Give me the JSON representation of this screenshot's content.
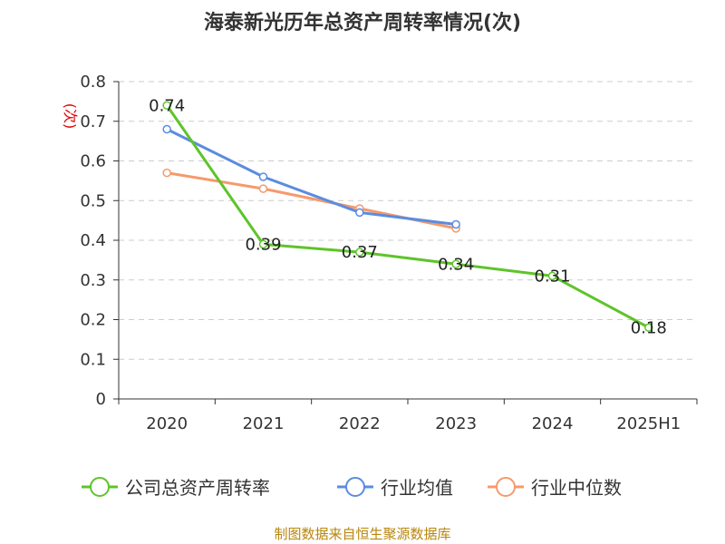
{
  "chart_data": {
    "type": "line",
    "title": "海泰新光历年总资产周转率情况(次)",
    "ylabel": "(次)",
    "xlabel": "",
    "categories": [
      "2020",
      "2021",
      "2022",
      "2023",
      "2024",
      "2025H1"
    ],
    "ylim": [
      0,
      0.8
    ],
    "yticks": [
      0,
      0.1,
      0.2,
      0.3,
      0.4,
      0.5,
      0.6,
      0.7,
      0.8
    ],
    "grid": true,
    "legend_position": "bottom",
    "series": [
      {
        "name": "公司总资产周转率",
        "values": [
          0.74,
          0.39,
          0.37,
          0.34,
          0.31,
          0.18
        ],
        "color": "#5ec42a",
        "show_labels": true
      },
      {
        "name": "行业均值",
        "values": [
          0.68,
          0.56,
          0.47,
          0.44,
          null,
          null
        ],
        "color": "#5b8ce0",
        "show_labels": false
      },
      {
        "name": "行业中位数",
        "values": [
          0.57,
          0.53,
          0.48,
          0.43,
          null,
          null
        ],
        "color": "#f59a6b",
        "show_labels": false
      }
    ]
  },
  "source_text": "制图数据来自恒生聚源数据库"
}
